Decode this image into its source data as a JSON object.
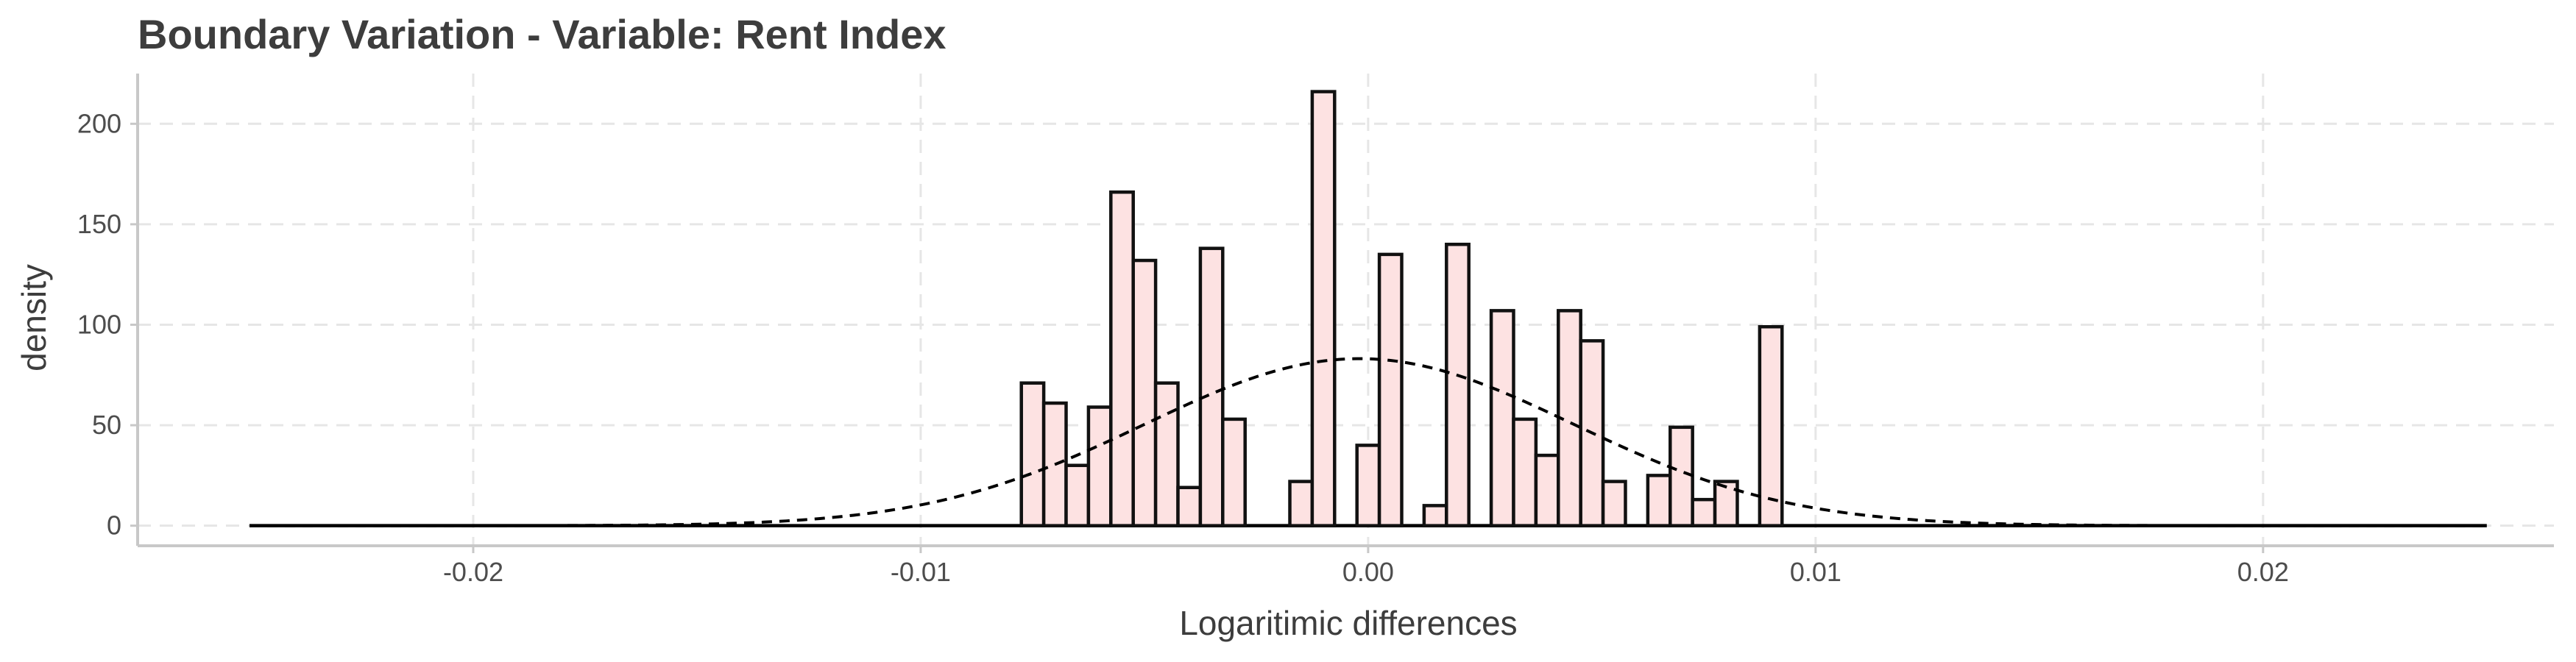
{
  "chart_data": {
    "type": "bar",
    "title": "Boundary Variation - Variable: Rent Index",
    "xlabel": "Logaritimic differences",
    "ylabel": "density",
    "xlim": [
      -0.0275,
      0.0265
    ],
    "ylim": [
      -10,
      225
    ],
    "x_ticks": [
      -0.02,
      -0.01,
      0.0,
      0.01,
      0.02
    ],
    "x_tick_labels": [
      "-0.02",
      "-0.01",
      "0.00",
      "0.01",
      "0.02"
    ],
    "y_ticks": [
      0,
      50,
      100,
      150,
      200
    ],
    "y_tick_labels": [
      "0",
      "50",
      "100",
      "150",
      "200"
    ],
    "grid": true,
    "bin_width": 0.0005,
    "colors": {
      "bar_fill": "#fde2e2",
      "bar_stroke": "#111111",
      "curve": "#000000"
    },
    "bins": [
      {
        "x": -0.0075,
        "y": 71
      },
      {
        "x": -0.007,
        "y": 61
      },
      {
        "x": -0.0065,
        "y": 30
      },
      {
        "x": -0.006,
        "y": 59
      },
      {
        "x": -0.0055,
        "y": 166
      },
      {
        "x": -0.005,
        "y": 132
      },
      {
        "x": -0.0045,
        "y": 71
      },
      {
        "x": -0.004,
        "y": 19
      },
      {
        "x": -0.0035,
        "y": 138
      },
      {
        "x": -0.003,
        "y": 53
      },
      {
        "x": -0.0015,
        "y": 22
      },
      {
        "x": -0.001,
        "y": 216
      },
      {
        "x": 0.0,
        "y": 40
      },
      {
        "x": 0.0005,
        "y": 135
      },
      {
        "x": 0.0015,
        "y": 10
      },
      {
        "x": 0.002,
        "y": 140
      },
      {
        "x": 0.003,
        "y": 107
      },
      {
        "x": 0.0035,
        "y": 53
      },
      {
        "x": 0.004,
        "y": 35
      },
      {
        "x": 0.0045,
        "y": 107
      },
      {
        "x": 0.005,
        "y": 92
      },
      {
        "x": 0.0055,
        "y": 22
      },
      {
        "x": 0.0065,
        "y": 25
      },
      {
        "x": 0.007,
        "y": 49
      },
      {
        "x": 0.0075,
        "y": 13
      },
      {
        "x": 0.008,
        "y": 22
      },
      {
        "x": 0.009,
        "y": 99
      }
    ],
    "zero_baseline_range": [
      -0.025,
      0.025
    ],
    "density_curve": {
      "type": "normal",
      "mean": -0.0002,
      "sd": 0.0048,
      "x_range": [
        -0.025,
        0.025
      ]
    }
  }
}
